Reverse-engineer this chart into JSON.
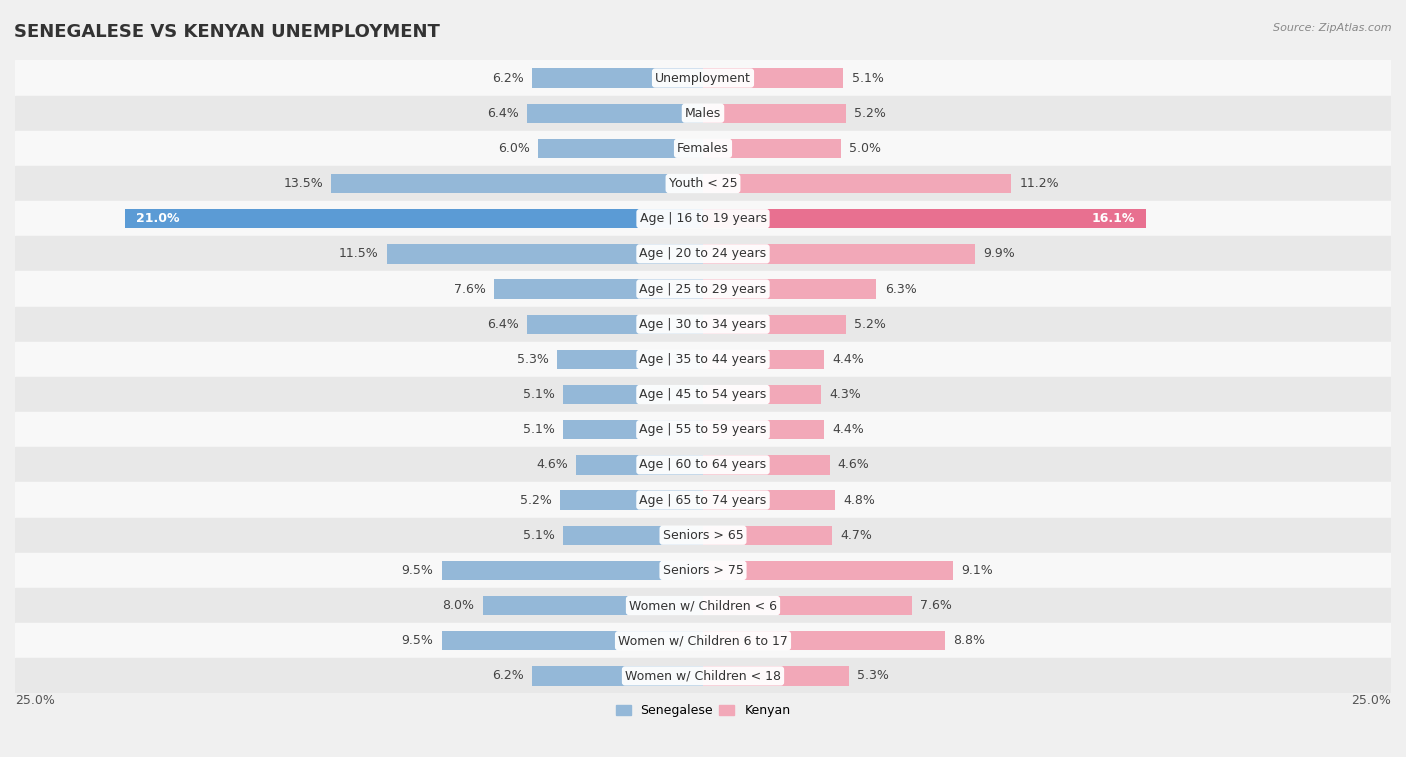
{
  "title": "SENEGALESE VS KENYAN UNEMPLOYMENT",
  "source": "Source: ZipAtlas.com",
  "categories": [
    "Unemployment",
    "Males",
    "Females",
    "Youth < 25",
    "Age | 16 to 19 years",
    "Age | 20 to 24 years",
    "Age | 25 to 29 years",
    "Age | 30 to 34 years",
    "Age | 35 to 44 years",
    "Age | 45 to 54 years",
    "Age | 55 to 59 years",
    "Age | 60 to 64 years",
    "Age | 65 to 74 years",
    "Seniors > 65",
    "Seniors > 75",
    "Women w/ Children < 6",
    "Women w/ Children 6 to 17",
    "Women w/ Children < 18"
  ],
  "senegalese": [
    6.2,
    6.4,
    6.0,
    13.5,
    21.0,
    11.5,
    7.6,
    6.4,
    5.3,
    5.1,
    5.1,
    4.6,
    5.2,
    5.1,
    9.5,
    8.0,
    9.5,
    6.2
  ],
  "kenyan": [
    5.1,
    5.2,
    5.0,
    11.2,
    16.1,
    9.9,
    6.3,
    5.2,
    4.4,
    4.3,
    4.4,
    4.6,
    4.8,
    4.7,
    9.1,
    7.6,
    8.8,
    5.3
  ],
  "senegalese_color_normal": "#94b8d8",
  "kenyan_color_normal": "#f2a8b8",
  "senegalese_color_highlight": "#5b9bd5",
  "kenyan_color_highlight": "#e87090",
  "highlight_row": "Age | 16 to 19 years",
  "bar_height": 0.55,
  "x_max": 25.0,
  "bg_color": "#f0f0f0",
  "row_color_even": "#f8f8f8",
  "row_color_odd": "#e8e8e8",
  "title_fontsize": 13,
  "label_fontsize": 9,
  "category_fontsize": 9,
  "value_color_normal": "#444444",
  "value_color_highlight_s": "#ffffff",
  "value_color_highlight_k": "#ffffff"
}
